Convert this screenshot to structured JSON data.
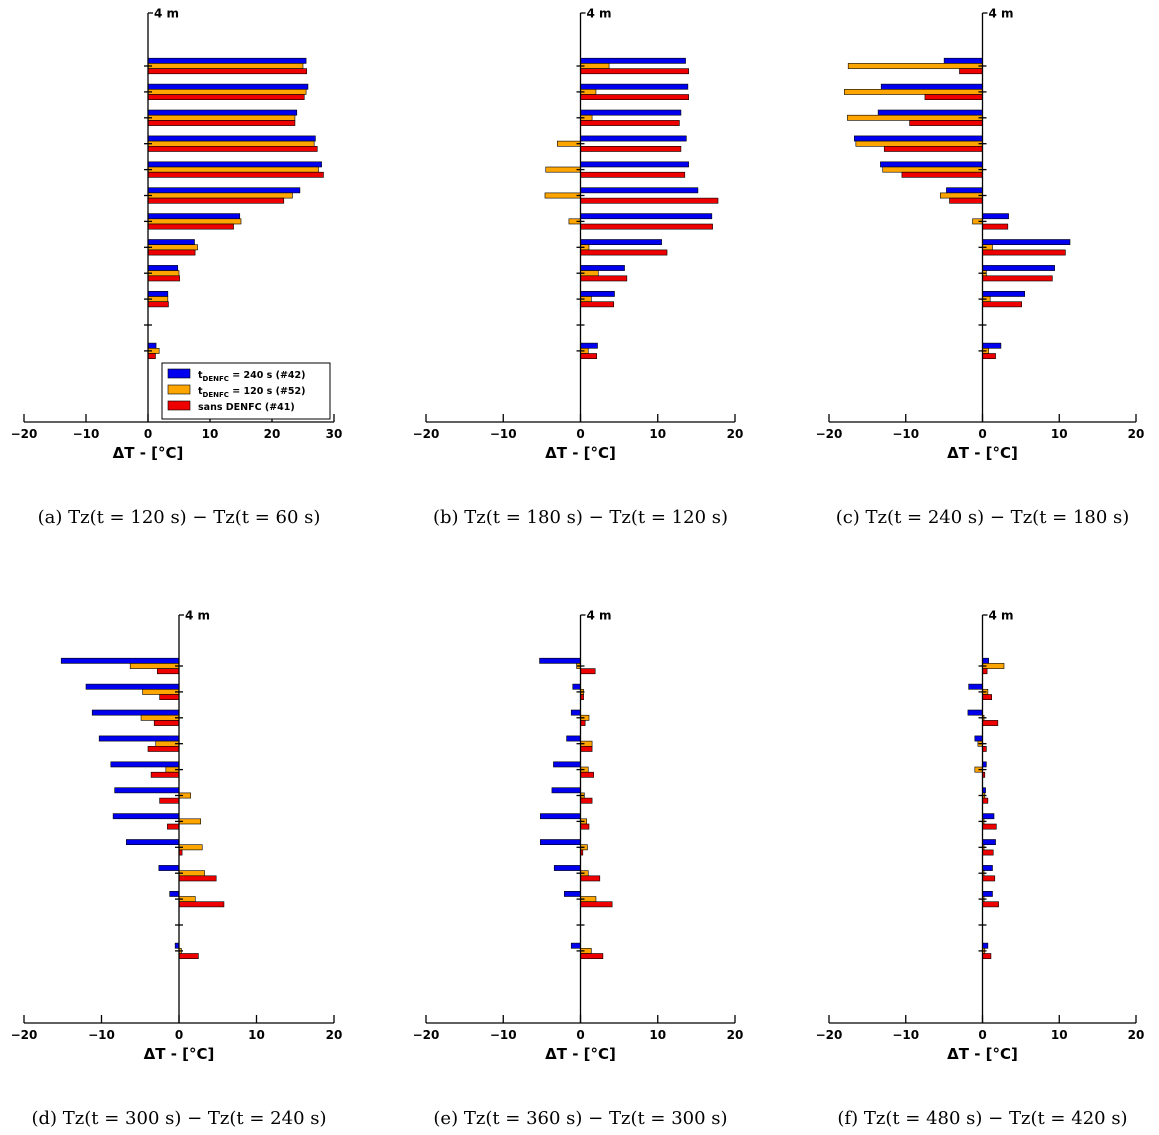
{
  "figure": {
    "xlabel": "ΔT -  [°C]",
    "height_label": "4 m",
    "colors": {
      "s240": "#0000ee",
      "s120": "#ffa500",
      "sans": "#ee0000",
      "edge": "#000000"
    }
  },
  "legend": {
    "entries": [
      {
        "series": "s240",
        "main": "t",
        "sub": "DENFC",
        "rest": " = 240 s (#42)"
      },
      {
        "series": "s120",
        "main": "t",
        "sub": "DENFC",
        "rest": " = 120 s (#52)"
      },
      {
        "series": "sans",
        "main": "sans DENFC (#41)",
        "sub": "",
        "rest": ""
      }
    ]
  },
  "chart_data": [
    {
      "type": "bar",
      "orientation": "horizontal",
      "caption": "(a) Tz(t = 120 s) − Tz(t = 60 s)",
      "xlim": [
        -20,
        30
      ],
      "xticks": [
        -20,
        -10,
        0,
        10,
        20,
        30
      ],
      "legend": true,
      "levels": 12,
      "series": [
        {
          "key": "s240",
          "values": [
            25.5,
            25.8,
            24,
            27,
            28,
            24.5,
            14.8,
            7.5,
            4.8,
            3.2,
            null,
            1.3
          ]
        },
        {
          "key": "s120",
          "values": [
            25,
            25.5,
            23.7,
            26.8,
            27.5,
            23.3,
            15,
            8,
            5,
            3.2,
            null,
            1.8
          ]
        },
        {
          "key": "sans",
          "values": [
            25.6,
            25.2,
            23.7,
            27.3,
            28.3,
            21.9,
            13.8,
            7.6,
            5.1,
            3.3,
            null,
            1.2
          ]
        }
      ]
    },
    {
      "type": "bar",
      "orientation": "horizontal",
      "caption": "(b) Tz(t = 180 s) − Tz(t = 120 s)",
      "xlim": [
        -20,
        20
      ],
      "xticks": [
        -20,
        -10,
        0,
        10,
        20
      ],
      "legend": false,
      "levels": 12,
      "series": [
        {
          "key": "s240",
          "values": [
            13.6,
            13.9,
            13,
            13.7,
            14,
            15.2,
            17,
            10.5,
            5.7,
            4.4,
            null,
            2.2
          ]
        },
        {
          "key": "s120",
          "values": [
            3.7,
            2,
            1.5,
            -3,
            -4.5,
            -4.6,
            -1.5,
            1.1,
            2.3,
            1.4,
            null,
            1
          ]
        },
        {
          "key": "sans",
          "values": [
            14,
            14,
            12.8,
            13,
            13.5,
            17.8,
            17.1,
            11.2,
            6,
            4.3,
            null,
            2.1
          ]
        }
      ]
    },
    {
      "type": "bar",
      "orientation": "horizontal",
      "caption": "(c) Tz(t = 240 s) − Tz(t = 180 s)",
      "xlim": [
        -20,
        20
      ],
      "xticks": [
        -20,
        -10,
        0,
        10,
        20
      ],
      "legend": false,
      "levels": 12,
      "series": [
        {
          "key": "s240",
          "values": [
            -5,
            -13.2,
            -13.6,
            -16.7,
            -13.3,
            -4.7,
            3.4,
            11.4,
            9.4,
            5.5,
            null,
            2.4
          ]
        },
        {
          "key": "s120",
          "values": [
            -17.5,
            -18,
            -17.6,
            -16.5,
            -13,
            -5.5,
            -1.3,
            1.3,
            0.5,
            1,
            null,
            0.8
          ]
        },
        {
          "key": "sans",
          "values": [
            -3,
            -7.5,
            -9.5,
            -12.8,
            -10.5,
            -4.3,
            3.3,
            10.8,
            9.1,
            5.1,
            null,
            1.7
          ]
        }
      ]
    },
    {
      "type": "bar",
      "orientation": "horizontal",
      "caption": "(d) Tz(t = 300 s) − Tz(t = 240 s)",
      "xlim": [
        -20,
        20
      ],
      "xticks": [
        -20,
        -10,
        0,
        10,
        20
      ],
      "legend": false,
      "levels": 12,
      "series": [
        {
          "key": "s240",
          "values": [
            -15.2,
            -12,
            -11.2,
            -10.3,
            -8.8,
            -8.3,
            -8.5,
            -6.8,
            -2.6,
            -1.2,
            null,
            -0.5
          ]
        },
        {
          "key": "s120",
          "values": [
            -6.3,
            -4.7,
            -4.9,
            -3,
            -1.7,
            1.5,
            2.8,
            3,
            3.3,
            2.1,
            null,
            0.3
          ]
        },
        {
          "key": "sans",
          "values": [
            -2.8,
            -2.5,
            -3.2,
            -4,
            -3.6,
            -2.5,
            -1.5,
            0.4,
            4.8,
            5.8,
            null,
            2.5
          ]
        }
      ]
    },
    {
      "type": "bar",
      "orientation": "horizontal",
      "caption": "(e) Tz(t = 360 s) − Tz(t = 300 s)",
      "xlim": [
        -20,
        20
      ],
      "xticks": [
        -20,
        -10,
        0,
        10,
        20
      ],
      "legend": false,
      "levels": 12,
      "series": [
        {
          "key": "s240",
          "values": [
            -5.3,
            -1,
            -1.2,
            -1.8,
            -3.5,
            -3.7,
            -5.2,
            -5.2,
            -3.4,
            -2.1,
            null,
            -1.2
          ]
        },
        {
          "key": "s120",
          "values": [
            -0.5,
            0.4,
            1.1,
            1.5,
            1,
            0.5,
            0.8,
            0.9,
            1,
            2,
            null,
            1.4
          ]
        },
        {
          "key": "sans",
          "values": [
            1.9,
            0.4,
            0.6,
            1.5,
            1.7,
            1.5,
            1.1,
            0.3,
            2.5,
            4.1,
            null,
            2.9
          ]
        }
      ]
    },
    {
      "type": "bar",
      "orientation": "horizontal",
      "caption": "(f) Tz(t = 480 s) − Tz(t = 420 s)",
      "xlim": [
        -20,
        20
      ],
      "xticks": [
        -20,
        -10,
        0,
        10,
        20
      ],
      "legend": false,
      "levels": 12,
      "series": [
        {
          "key": "s240",
          "values": [
            0.8,
            -1.8,
            -1.9,
            -1,
            0.5,
            0.4,
            1.5,
            1.7,
            1.3,
            1.3,
            null,
            0.7
          ]
        },
        {
          "key": "s120",
          "values": [
            2.8,
            0.7,
            0.2,
            -0.6,
            -1,
            0.3,
            0.2,
            0.2,
            0.2,
            0.2,
            null,
            0.3
          ]
        },
        {
          "key": "sans",
          "values": [
            0.6,
            1.2,
            2,
            0.5,
            0.3,
            0.7,
            1.8,
            1.4,
            1.6,
            2.1,
            null,
            1.1
          ]
        }
      ]
    }
  ]
}
